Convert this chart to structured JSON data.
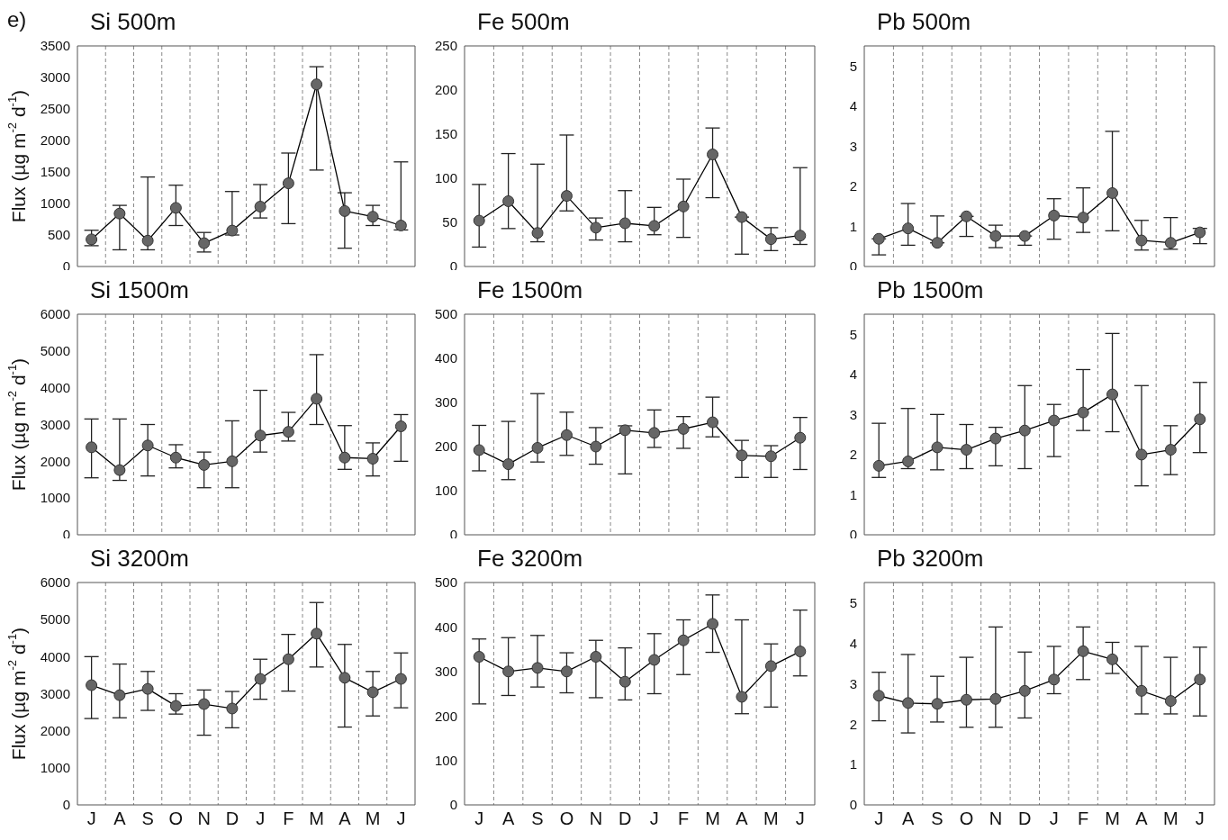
{
  "chart_data": [
    {
      "type": "line",
      "title": "Si 500m",
      "ylabel": "Flux (µg m$^{-2}$ d$^{-1}$)",
      "annotations": [
        "e)"
      ],
      "categories": [
        null,
        null,
        null,
        null,
        null,
        null,
        null,
        null,
        null,
        null,
        null,
        null
      ],
      "series": [
        {
          "color": "#666666",
          "values": [
            430,
            840,
            410,
            930,
            370,
            570,
            950,
            1320,
            2890,
            880,
            790,
            650
          ],
          "errors": [
            [
              330,
              575
            ],
            [
              265,
              970
            ],
            [
              265,
              1420
            ],
            [
              650,
              1290
            ],
            [
              230,
              540
            ],
            [
              500,
              1190
            ],
            [
              770,
              1300
            ],
            [
              680,
              1800
            ],
            [
              1530,
              3170
            ],
            [
              290,
              1170
            ],
            [
              650,
              970
            ],
            [
              580,
              1660
            ]
          ]
        }
      ],
      "ylim": [
        0,
        3500
      ],
      "yticks": [
        0,
        500,
        1000,
        1500,
        2000,
        2500,
        3000,
        3500
      ],
      "grid": "x",
      "marker": "circle"
    },
    {
      "type": "line",
      "title": "Fe 500m",
      "categories": [
        null,
        null,
        null,
        null,
        null,
        null,
        null,
        null,
        null,
        null,
        null,
        null
      ],
      "series": [
        {
          "color": "#666666",
          "values": [
            52,
            74,
            38,
            80,
            44,
            49,
            46,
            68,
            127,
            56,
            31,
            35
          ],
          "errors": [
            [
              22,
              93
            ],
            [
              43,
              128
            ],
            [
              28,
              116
            ],
            [
              63,
              149
            ],
            [
              30,
              55
            ],
            [
              28,
              86
            ],
            [
              36,
              67
            ],
            [
              33,
              99
            ],
            [
              78,
              157
            ],
            [
              14,
              56
            ],
            [
              18,
              44
            ],
            [
              25,
              112
            ]
          ]
        }
      ],
      "ylim": [
        0,
        250
      ],
      "yticks": [
        0,
        50,
        100,
        150,
        200,
        250
      ],
      "grid": "x",
      "marker": "circle"
    },
    {
      "type": "line",
      "title": "Pb 500m",
      "categories": [
        null,
        null,
        null,
        null,
        null,
        null,
        null,
        null,
        null,
        null,
        null,
        null
      ],
      "series": [
        {
          "color": "#666666",
          "values": [
            0.69,
            0.95,
            0.59,
            1.25,
            0.76,
            0.76,
            1.27,
            1.22,
            1.83,
            0.65,
            0.59,
            0.85
          ],
          "errors": [
            [
              0.29,
              0.69
            ],
            [
              0.53,
              1.57
            ],
            [
              0.59,
              1.26
            ],
            [
              0.75,
              1.25
            ],
            [
              0.47,
              1.03
            ],
            [
              0.53,
              0.76
            ],
            [
              0.68,
              1.69
            ],
            [
              0.85,
              1.96
            ],
            [
              0.89,
              3.37
            ],
            [
              0.41,
              1.15
            ],
            [
              0.43,
              1.22
            ],
            [
              0.57,
              0.95
            ]
          ]
        }
      ],
      "ylim": [
        0,
        5.5
      ],
      "yticks": [
        0,
        1,
        2,
        3,
        4,
        5
      ],
      "grid": "x",
      "marker": "circle"
    },
    {
      "type": "line",
      "title": "Si 1500m",
      "ylabel": "Flux (µg m$^{-2}$ d$^{-1}$)",
      "categories": [
        null,
        null,
        null,
        null,
        null,
        null,
        null,
        null,
        null,
        null,
        null,
        null
      ],
      "series": [
        {
          "color": "#666666",
          "values": [
            2380,
            1760,
            2430,
            2100,
            1900,
            2000,
            2700,
            2800,
            3700,
            2100,
            2070,
            2950
          ],
          "errors": [
            [
              1550,
              3150
            ],
            [
              1480,
              3150
            ],
            [
              1600,
              3000
            ],
            [
              1820,
              2450
            ],
            [
              1280,
              2250
            ],
            [
              1280,
              3100
            ],
            [
              2250,
              3930
            ],
            [
              2550,
              3330
            ],
            [
              3000,
              4900
            ],
            [
              1780,
              2970
            ],
            [
              1600,
              2500
            ],
            [
              2000,
              3270
            ]
          ]
        }
      ],
      "ylim": [
        0,
        6000
      ],
      "yticks": [
        0,
        1000,
        2000,
        3000,
        4000,
        5000,
        6000
      ],
      "grid": "x",
      "marker": "circle"
    },
    {
      "type": "line",
      "title": "Fe 1500m",
      "categories": [
        null,
        null,
        null,
        null,
        null,
        null,
        null,
        null,
        null,
        null,
        null,
        null
      ],
      "series": [
        {
          "color": "#666666",
          "values": [
            192,
            160,
            197,
            226,
            200,
            237,
            231,
            240,
            255,
            180,
            178,
            220
          ],
          "errors": [
            [
              145,
              248
            ],
            [
              125,
              257
            ],
            [
              165,
              320
            ],
            [
              180,
              278
            ],
            [
              160,
              243
            ],
            [
              138,
              247
            ],
            [
              198,
              283
            ],
            [
              196,
              268
            ],
            [
              222,
              312
            ],
            [
              130,
              214
            ],
            [
              130,
              202
            ],
            [
              148,
              266
            ]
          ]
        }
      ],
      "ylim": [
        0,
        500
      ],
      "yticks": [
        0,
        100,
        200,
        300,
        400,
        500
      ],
      "grid": "x",
      "marker": "circle"
    },
    {
      "type": "line",
      "title": "Pb 1500m",
      "categories": [
        null,
        null,
        null,
        null,
        null,
        null,
        null,
        null,
        null,
        null,
        null,
        null
      ],
      "series": [
        {
          "color": "#666666",
          "values": [
            1.72,
            1.83,
            2.18,
            2.12,
            2.4,
            2.6,
            2.85,
            3.05,
            3.5,
            2.0,
            2.12,
            2.88
          ],
          "errors": [
            [
              1.43,
              2.78
            ],
            [
              1.65,
              3.15
            ],
            [
              1.62,
              3.0
            ],
            [
              1.65,
              2.75
            ],
            [
              1.72,
              2.68
            ],
            [
              1.65,
              3.72
            ],
            [
              1.95,
              3.25
            ],
            [
              2.6,
              4.12
            ],
            [
              2.57,
              5.02
            ],
            [
              1.22,
              3.72
            ],
            [
              1.5,
              2.72
            ],
            [
              2.05,
              3.8
            ]
          ]
        }
      ],
      "ylim": [
        0,
        5.5
      ],
      "yticks": [
        0,
        1,
        2,
        3,
        4,
        5
      ],
      "grid": "x",
      "marker": "circle"
    },
    {
      "type": "line",
      "title": "Si 3200m",
      "ylabel": "Flux (µg m$^{-2}$ d$^{-1}$)",
      "categories": [
        "J",
        "A",
        "S",
        "O",
        "N",
        "D",
        "J",
        "F",
        "M",
        "A",
        "M",
        "J"
      ],
      "series": [
        {
          "color": "#666666",
          "values": [
            3230,
            2960,
            3130,
            2670,
            2720,
            2600,
            3400,
            3930,
            4620,
            3430,
            3040,
            3400
          ],
          "errors": [
            [
              2330,
              4000
            ],
            [
              2350,
              3800
            ],
            [
              2550,
              3600
            ],
            [
              2450,
              3000
            ],
            [
              1880,
              3100
            ],
            [
              2080,
              3060
            ],
            [
              2850,
              3930
            ],
            [
              3070,
              4600
            ],
            [
              3720,
              5460
            ],
            [
              2100,
              4330
            ],
            [
              2400,
              3600
            ],
            [
              2620,
              4100
            ]
          ]
        }
      ],
      "ylim": [
        0,
        6000
      ],
      "yticks": [
        0,
        1000,
        2000,
        3000,
        4000,
        5000,
        6000
      ],
      "grid": "x",
      "marker": "circle"
    },
    {
      "type": "line",
      "title": "Fe 3200m",
      "categories": [
        "J",
        "A",
        "S",
        "O",
        "N",
        "D",
        "J",
        "F",
        "M",
        "A",
        "M",
        "J"
      ],
      "series": [
        {
          "color": "#666666",
          "values": [
            333,
            300,
            308,
            300,
            333,
            277,
            326,
            370,
            407,
            243,
            312,
            345
          ],
          "errors": [
            [
              227,
              373
            ],
            [
              246,
              376
            ],
            [
              265,
              381
            ],
            [
              252,
              342
            ],
            [
              241,
              370
            ],
            [
              236,
              353
            ],
            [
              250,
              385
            ],
            [
              293,
              416
            ],
            [
              343,
              472
            ],
            [
              205,
              416
            ],
            [
              220,
              362
            ],
            [
              290,
              438
            ]
          ]
        }
      ],
      "ylim": [
        0,
        500
      ],
      "yticks": [
        0,
        100,
        200,
        300,
        400,
        500
      ],
      "grid": "x",
      "marker": "circle"
    },
    {
      "type": "line",
      "title": "Pb 3200m",
      "categories": [
        "J",
        "A",
        "S",
        "O",
        "N",
        "D",
        "J",
        "F",
        "M",
        "A",
        "M",
        "J"
      ],
      "series": [
        {
          "color": "#666666",
          "values": [
            2.7,
            2.52,
            2.5,
            2.6,
            2.62,
            2.82,
            3.1,
            3.8,
            3.6,
            2.82,
            2.57,
            3.1
          ],
          "errors": [
            [
              2.08,
              3.28
            ],
            [
              1.78,
              3.72
            ],
            [
              2.05,
              3.18
            ],
            [
              1.92,
              3.65
            ],
            [
              1.92,
              4.4
            ],
            [
              2.15,
              3.78
            ],
            [
              2.75,
              3.92
            ],
            [
              3.1,
              4.4
            ],
            [
              3.25,
              4.02
            ],
            [
              2.25,
              3.92
            ],
            [
              2.25,
              3.65
            ],
            [
              2.2,
              3.9
            ]
          ]
        }
      ],
      "ylim": [
        0,
        5.5
      ],
      "yticks": [
        0,
        1,
        2,
        3,
        4,
        5
      ],
      "grid": "x",
      "marker": "circle"
    }
  ]
}
